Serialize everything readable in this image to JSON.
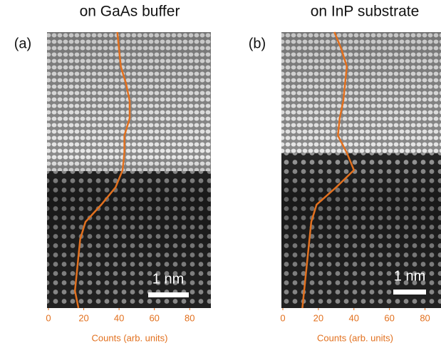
{
  "chart_data": [
    {
      "type": "line",
      "orientation": "horizontal",
      "panel_label": "(a)",
      "title": "on GaAs buffer",
      "xlabel": "Counts (arb. units)",
      "annotation": "1 nm",
      "xlim": [
        0,
        92
      ],
      "xticks": [
        0,
        20,
        40,
        60,
        80
      ],
      "color": "#e2701e",
      "categories": [
        null,
        null,
        null,
        null,
        null,
        null,
        null,
        null,
        null,
        null,
        null,
        null,
        null,
        null,
        null,
        null,
        null
      ],
      "values": [
        39,
        40,
        41,
        44,
        46,
        46,
        43,
        43,
        42,
        38,
        30,
        21,
        18,
        17,
        16,
        15,
        17
      ]
    },
    {
      "type": "line",
      "orientation": "horizontal",
      "panel_label": "(b)",
      "title": "on InP substrate",
      "xlabel": "Counts (arb. units)",
      "annotation": "1 nm",
      "xlim": [
        0,
        89
      ],
      "xticks": [
        0,
        20,
        40,
        60,
        80
      ],
      "color": "#e2701e",
      "categories": [
        null,
        null,
        null,
        null,
        null,
        null,
        null,
        null,
        null,
        null,
        null,
        null,
        null,
        null,
        null,
        null,
        null
      ],
      "values": [
        29,
        33,
        36,
        35,
        34,
        32,
        31,
        36,
        40,
        30,
        19,
        16,
        15,
        14,
        13,
        12,
        11
      ]
    }
  ]
}
